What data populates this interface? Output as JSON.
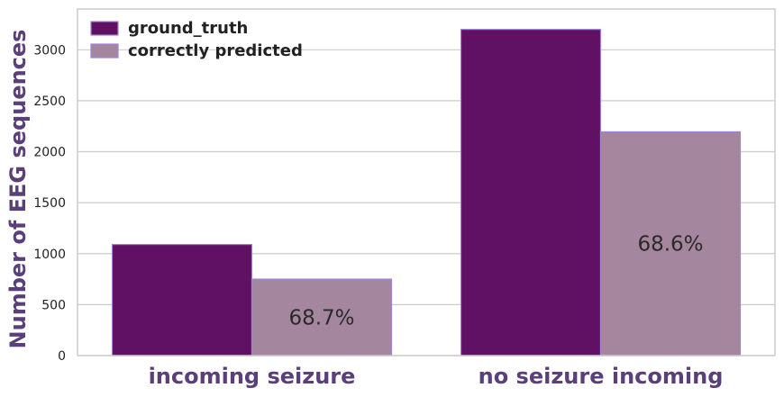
{
  "chart_data": {
    "type": "bar",
    "categories": [
      "incoming seizure",
      "no seizure incoming"
    ],
    "series": [
      {
        "name": "ground_truth",
        "values": [
          1090,
          3200
        ],
        "color": "#611163"
      },
      {
        "name": "correctly predicted",
        "values": [
          750,
          2195
        ],
        "color": "#a5869f"
      }
    ],
    "bar_labels": [
      "68.7%",
      "68.6%"
    ],
    "ylabel": "Number of EEG sequences",
    "xlabel": "",
    "ylim": [
      0,
      3400
    ],
    "yticks": [
      0,
      500,
      1000,
      1500,
      2000,
      2500,
      3000
    ],
    "grid": true,
    "legend_position": "top-left",
    "colors": {
      "axis_text": "#5a3f7a",
      "grid": "#cccccc",
      "bar_edge": "#9b86d6",
      "tick_text": "#222222"
    }
  }
}
